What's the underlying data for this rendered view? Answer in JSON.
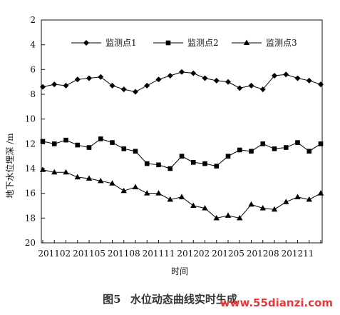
{
  "chart_data": {
    "type": "line",
    "xlabel": "时间",
    "ylabel": "地下水位埋深 /m",
    "ylim": [
      2,
      20
    ],
    "y_inverted": true,
    "yticks": [
      2,
      4,
      6,
      8,
      10,
      12,
      14,
      16,
      18,
      20
    ],
    "x_tick_labels": [
      "201102",
      "201105",
      "201108",
      "201111",
      "201202",
      "201205",
      "201208",
      "201211"
    ],
    "legend_position": "top",
    "grid": false,
    "series": [
      {
        "name": "监测点1",
        "marker": "diamond",
        "values": [
          7.4,
          7.2,
          7.3,
          6.8,
          6.7,
          6.6,
          7.3,
          7.6,
          7.8,
          7.3,
          6.8,
          6.5,
          6.2,
          6.3,
          6.7,
          6.9,
          7.0,
          7.5,
          7.3,
          7.6,
          6.5,
          6.4,
          6.7,
          6.9,
          7.2
        ]
      },
      {
        "name": "监测点2",
        "marker": "square",
        "values": [
          11.8,
          12.0,
          11.7,
          12.1,
          12.3,
          11.6,
          11.9,
          12.4,
          12.6,
          13.6,
          13.7,
          14.0,
          13.0,
          13.5,
          13.6,
          13.8,
          13.0,
          12.5,
          12.6,
          12.0,
          12.4,
          12.3,
          11.9,
          12.6,
          12.0
        ]
      },
      {
        "name": "监测点3",
        "marker": "triangle",
        "values": [
          14.1,
          14.3,
          14.3,
          14.7,
          14.8,
          15.0,
          15.2,
          15.8,
          15.5,
          16.0,
          16.0,
          16.5,
          16.3,
          17.0,
          17.2,
          18.0,
          17.8,
          18.0,
          16.9,
          17.2,
          17.3,
          16.7,
          16.3,
          16.5,
          16.0
        ]
      }
    ]
  },
  "caption": {
    "figure_no": "图5",
    "title": "水位动态曲线实时生成"
  },
  "watermark": "www.55dianzi.com"
}
